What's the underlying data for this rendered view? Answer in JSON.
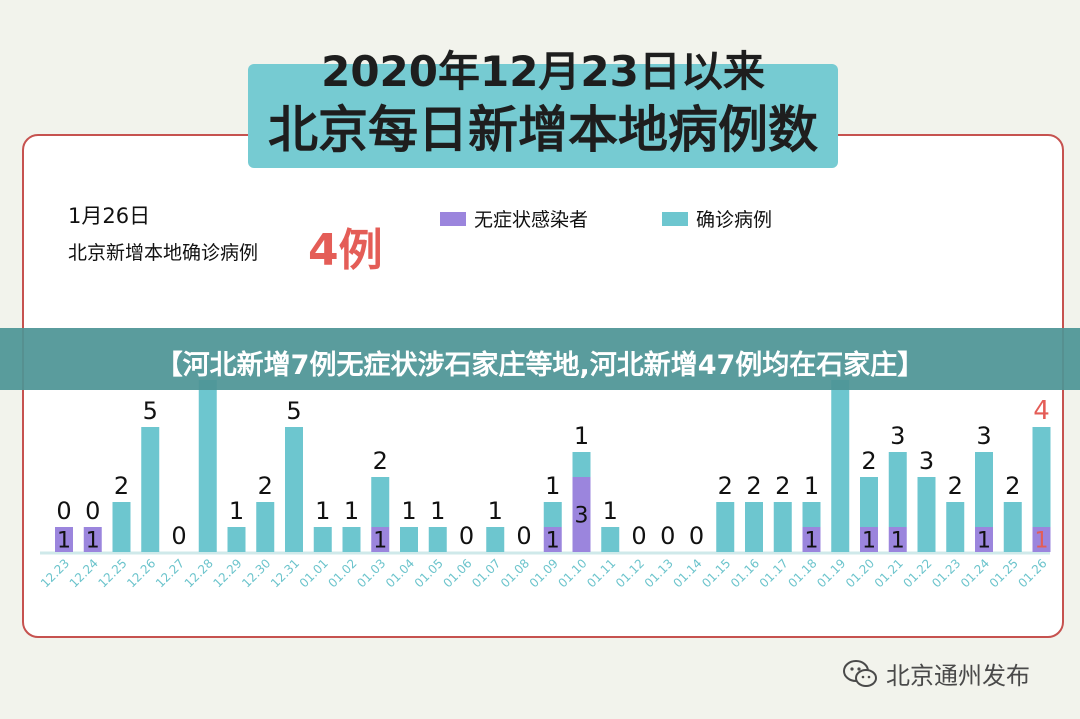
{
  "title": {
    "line1": "2020年12月23日以来",
    "line2": "北京每日新增本地病例数"
  },
  "summary": {
    "date": "1月26日",
    "label": "北京新增本地确诊病例",
    "value": "4例"
  },
  "banner": "【河北新增7例无症状涉石家庄等地,河北新增47例均在石家庄】",
  "watermark": "北京通州发布",
  "colors": {
    "asymptomatic": "#9b85dd",
    "confirmed": "#6dc6cf",
    "highlight": "#e45d57",
    "axis": "#cfe9ea",
    "tick_label": "#6cc4cc"
  },
  "chart_data": {
    "type": "bar",
    "stacked": true,
    "categories": [
      "12.23",
      "12.24",
      "12.25",
      "12.26",
      "12.27",
      "12.28",
      "12.29",
      "12.30",
      "12.31",
      "01.01",
      "01.02",
      "01.03",
      "01.04",
      "01.05",
      "01.06",
      "01.07",
      "01.08",
      "01.09",
      "01.10",
      "01.11",
      "01.12",
      "01.13",
      "01.14",
      "01.15",
      "01.16",
      "01.17",
      "01.18",
      "01.19",
      "01.20",
      "01.21",
      "01.22",
      "01.23",
      "01.24",
      "01.25",
      "01.26"
    ],
    "series": [
      {
        "name": "无症状感染者",
        "values": [
          1,
          1,
          0,
          0,
          0,
          0,
          0,
          0,
          0,
          0,
          0,
          1,
          0,
          0,
          0,
          0,
          0,
          1,
          3,
          0,
          0,
          0,
          0,
          0,
          0,
          0,
          1,
          0,
          1,
          1,
          0,
          0,
          1,
          0,
          1
        ]
      },
      {
        "name": "确诊病例",
        "values": [
          0,
          0,
          2,
          5,
          0,
          null,
          1,
          2,
          5,
          1,
          1,
          2,
          1,
          1,
          0,
          1,
          0,
          1,
          1,
          1,
          0,
          0,
          0,
          2,
          2,
          2,
          1,
          null,
          2,
          3,
          3,
          2,
          3,
          2,
          4
        ]
      }
    ],
    "bar_labels_visible": true,
    "ylim": [
      0,
      6
    ]
  }
}
